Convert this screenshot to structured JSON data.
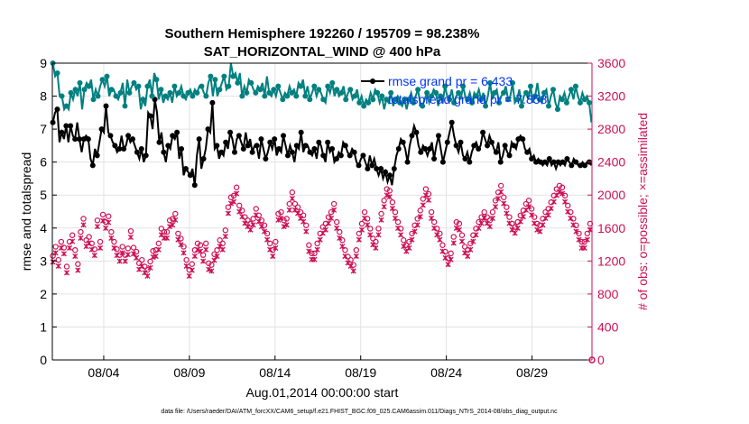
{
  "chart_data": {
    "type": "line",
    "title": [
      "Southern Hemisphere 192260 / 195709 = 98.238%",
      "SAT_HORIZONTAL_WIND @ 400 hPa"
    ],
    "xlabel": "Aug.01,2014 00:00:00 start",
    "ylabel": "rmse and totalspread",
    "ylabel_right": "# of obs: o=possible; ×=assimilated",
    "footer": "data file: /Users/raeder/DAI/ATM_forcXX/CAM6_setup/f.e21.FHIST_BGC.f09_025.CAM6assim.011/Diags_NTrS_2014-08/obs_diag_output.nc",
    "xlim": [
      0,
      31.5
    ],
    "ylim": [
      0,
      9
    ],
    "ylim_right": [
      0,
      3600
    ],
    "x_ticks": [
      3,
      8,
      13,
      18,
      23,
      28
    ],
    "x_tick_labels": [
      "08/04",
      "08/09",
      "08/14",
      "08/19",
      "08/24",
      "08/29"
    ],
    "y_ticks": [
      0,
      1,
      2,
      3,
      4,
      5,
      6,
      7,
      8,
      9
    ],
    "y_ticks_right": [
      0,
      400,
      800,
      1200,
      1600,
      2000,
      2400,
      2800,
      3200,
      3600
    ],
    "grid": true,
    "legend_position": "top-right",
    "colors": {
      "rmse": "#000000",
      "spread": "#008080",
      "obs": "#cc1155",
      "legend_text": "#0033ff"
    },
    "series": [
      {
        "name": "rmse grand pr = 6.433",
        "axis": "left",
        "color": "#000000",
        "values": [
          7.2,
          7.5,
          7.6,
          6.6,
          6.9,
          6.7,
          7.1,
          6.6,
          7.1,
          6.8,
          6.7,
          7.2,
          6.7,
          6.3,
          6.7,
          6.8,
          6.7,
          6.1,
          5.9,
          6.4,
          6.2,
          6.6,
          7.0,
          6.9,
          7.7,
          6.9,
          6.8,
          6.6,
          6.5,
          6.3,
          6.4,
          6.8,
          6.4,
          6.5,
          6.8,
          6.6,
          6.7,
          6.5,
          6.3,
          6.1,
          6.4,
          6.0,
          6.2,
          7.5,
          7.4,
          7.0,
          7.9,
          7.5,
          6.6,
          6.9,
          6.3,
          6.0,
          6.5,
          6.4,
          6.8,
          6.7,
          6.9,
          6.1,
          6.4,
          5.6,
          5.8,
          5.7,
          5.6,
          5.8,
          5.3,
          6.2,
          6.7,
          5.8,
          6.1,
          6.4,
          7.0,
          6.9,
          7.8,
          6.4,
          6.5,
          6.1,
          6.3,
          6.2,
          6.6,
          6.4,
          6.9,
          6.7,
          6.3,
          6.7,
          6.8,
          6.6,
          6.4,
          6.9,
          6.5,
          6.7,
          6.3,
          6.5,
          6.5,
          6.1,
          6.7,
          6.4,
          6.1,
          6.3,
          6.6,
          6.4,
          6.7,
          6.2,
          6.4,
          6.3,
          6.8,
          6.5,
          6.2,
          6.5,
          6.3,
          6.0,
          6.5,
          6.4,
          6.9,
          6.3,
          6.5,
          6.5,
          6.3,
          6.2,
          6.4,
          6.1,
          6.6,
          6.5,
          6.2,
          6.0,
          6.6,
          6.3,
          6.4,
          6.0,
          6.1,
          6.3,
          6.2,
          6.6,
          6.5,
          6.3,
          6.2,
          6.4,
          6.3,
          6.0,
          5.9,
          6.1,
          6.2,
          6.0,
          5.8,
          6.2,
          5.9,
          6.1,
          5.8,
          5.6,
          5.8,
          5.5,
          5.7,
          5.4,
          5.6,
          5.3,
          5.8,
          6.2,
          6.4,
          6.7,
          6.6,
          6.4,
          6.0,
          6.5,
          6.8,
          7.1,
          6.9,
          6.5,
          6.3,
          6.5,
          6.4,
          6.2,
          6.4,
          6.6,
          6.1,
          6.5,
          6.8,
          6.4,
          6.0,
          6.3,
          6.6,
          6.9,
          7.2,
          6.8,
          6.5,
          6.3,
          6.6,
          6.2,
          6.1,
          6.3,
          6.0,
          6.3,
          6.5,
          6.6,
          6.4,
          6.5,
          6.9,
          6.7,
          6.5,
          6.8,
          6.6,
          6.4,
          6.3,
          6.6,
          6.0,
          6.2,
          6.5,
          6.3,
          6.2,
          6.6,
          6.5,
          6.4,
          6.7,
          6.8,
          6.7,
          6.4,
          6.3,
          6.4,
          6.1,
          6.2,
          6.0,
          6.1,
          6.0,
          5.9,
          6.0,
          5.9,
          6.1,
          5.9,
          6.0,
          5.8,
          6.0,
          5.9,
          6.0,
          5.9,
          6.1,
          6.0,
          5.9,
          6.1,
          6.0,
          5.9,
          5.9,
          6.0,
          5.9,
          6.0,
          6.0,
          5.9
        ]
      },
      {
        "name": "totalspread grand pr = 7.858",
        "axis": "left",
        "color": "#008080",
        "values": [
          9.0,
          8.6,
          8.7,
          8.0,
          8.0,
          7.6,
          7.7,
          7.6,
          8.1,
          7.9,
          8.2,
          8.0,
          8.4,
          7.6,
          8.2,
          8.4,
          8.3,
          8.5,
          7.9,
          8.2,
          8.0,
          8.3,
          8.5,
          8.3,
          8.6,
          8.0,
          8.2,
          8.2,
          8.0,
          7.9,
          8.1,
          8.4,
          7.7,
          8.5,
          8.1,
          8.3,
          8.4,
          8.2,
          8.3,
          7.6,
          7.9,
          7.7,
          8.3,
          8.5,
          8.0,
          8.7,
          8.5,
          7.9,
          8.2,
          7.8,
          8.0,
          7.9,
          8.1,
          7.8,
          8.3,
          8.0,
          8.1,
          8.3,
          8.0,
          7.9,
          8.1,
          8.2,
          8.0,
          8.2,
          8.1,
          8.3,
          8.3,
          8.1,
          8.0,
          8.4,
          8.6,
          8.0,
          8.5,
          8.0,
          8.2,
          8.4,
          8.6,
          8.2,
          8.3,
          9.0,
          8.6,
          8.7,
          8.4,
          8.7,
          8.0,
          8.3,
          8.1,
          8.5,
          8.4,
          8.2,
          8.1,
          8.3,
          8.2,
          8.4,
          8.0,
          8.6,
          8.1,
          8.0,
          8.2,
          8.0,
          8.3,
          8.1,
          7.9,
          8.1,
          8.0,
          8.3,
          8.1,
          8.2,
          8.0,
          8.4,
          8.3,
          8.5,
          8.0,
          8.3,
          7.9,
          8.1,
          8.3,
          8.0,
          8.2,
          8.1,
          7.9,
          7.8,
          8.3,
          8.1,
          8.4,
          8.0,
          8.2,
          8.0,
          8.1,
          8.3,
          7.9,
          8.1,
          8.2,
          7.9,
          8.0,
          8.2,
          7.8,
          8.0,
          7.7,
          7.9,
          7.8,
          8.1,
          7.9,
          8.2,
          8.1,
          7.8,
          8.0,
          7.6,
          7.9,
          7.8,
          8.1,
          7.7,
          7.9,
          8.0,
          7.8,
          7.7,
          7.9,
          7.6,
          7.9,
          8.1,
          7.8,
          8.0,
          8.2,
          7.8,
          7.7,
          7.9,
          8.1,
          7.8,
          8.0,
          8.2,
          8.1,
          7.7,
          8.0,
          7.8,
          8.3,
          8.0,
          7.9,
          8.2,
          7.8,
          8.0,
          8.1,
          7.9,
          8.3,
          8.0,
          7.9,
          8.1,
          7.8,
          8.1,
          8.0,
          8.2,
          7.9,
          8.1,
          7.7,
          8.0,
          8.4,
          7.9,
          8.1,
          8.2,
          7.8,
          8.0,
          8.1,
          8.3,
          7.9,
          8.0,
          8.4,
          7.8,
          7.9,
          8.2,
          7.7,
          8.0,
          8.1,
          7.9,
          8.3,
          7.8,
          8.0,
          8.4,
          7.9,
          7.8,
          8.1,
          8.2,
          7.7,
          8.0,
          8.2,
          7.8,
          7.6,
          8.0,
          7.9,
          8.1,
          7.8,
          8.0,
          8.2,
          7.9,
          8.3,
          8.0,
          7.8,
          8.1,
          7.9,
          8.0,
          7.8,
          7.2
        ]
      }
    ],
    "obs_possible": [
      1230,
      1210,
      1340,
      1280,
      1180,
      1220,
      1400,
      1420,
      1330,
      1160,
      1100,
      1130,
      1400,
      1210,
      1480,
      1560,
      1300,
      1380,
      1130,
      1390,
      1520,
      1580,
      1680,
      1720,
      1420,
      1560,
      1460,
      1440,
      1380,
      1470,
      1310,
      1560,
      1660,
      1360,
      1400,
      1410,
      1730,
      1340,
      1640,
      1580,
      1710,
      1540,
      1520,
      1470,
      1400,
      1370,
      1310,
      1260,
      1240,
      1260,
      1340,
      1400,
      1240,
      1310,
      1320,
      1440,
      1530,
      1480,
      1330,
      1270,
      1280,
      1050,
      1140,
      1200,
      1180,
      1260,
      1100,
      1080,
      1060,
      1120,
      1160,
      1240,
      1290,
      1280,
      1300,
      1360,
      1380,
      1340,
      1560,
      1500,
      1520,
      1440,
      1520,
      1620,
      1660,
      1720,
      1680,
      1780,
      1740,
      1600,
      1500,
      1520,
      1440,
      1400,
      1340,
      1260,
      1180,
      1120,
      1060,
      1100,
      1130,
      1280,
      1300,
      1420,
      1380,
      1440,
      1360,
      1300,
      1240,
      1200,
      1380,
      1220,
      1140,
      1040,
      1120,
      1170,
      1250,
      1200,
      1300,
      1340,
      1420,
      1380,
      1380,
      1440,
      1540,
      1700,
      1820,
      1880,
      1940,
      2000,
      1960,
      2000,
      2060,
      2000,
      1840,
      1800,
      1780,
      1760,
      1700,
      1720,
      1660,
      1580,
      1620,
      1660,
      1680,
      1700,
      1800,
      1740,
      1720,
      1700,
      1660,
      1640,
      1600,
      1580,
      1500,
      1440,
      1380,
      1340,
      1300,
      1280,
      1400,
      1560,
      1740,
      1800,
      1760,
      1700,
      1660,
      1640,
      1680,
      1800,
      1860,
      1940,
      2000,
      1920,
      1860,
      1800,
      1820,
      1780,
      1760,
      1740,
      1720,
      1700,
      1600,
      1420,
      1360,
      1300,
      1260,
      1200,
      1260,
      1300,
      1380,
      1440,
      1500,
      1540,
      1580,
      1600,
      1620,
      1660,
      1700,
      1700,
      1760,
      1820,
      1860,
      1740,
      1640,
      1620,
      1520,
      1460,
      1420,
      1380,
      1300,
      1240,
      1220,
      1200,
      1180,
      1140,
      1120,
      1220,
      1300,
      1420,
      1500,
      1520,
      1620,
      1700,
      1760,
      1800,
      1680,
      1640,
      1560,
      1500,
      1440,
      1380,
      1400,
      1480,
      1560,
      1660,
      1740,
      1840,
      1900,
      1980,
      2040,
      2060,
      2020,
      1960,
      1880,
      1820,
      1760,
      1700,
      1640,
      1600,
      1560,
      1480,
      1420,
      1380,
      1360,
      1340,
      1400,
      1440,
      1500,
      1560,
      1600,
      1640,
      1680,
      1700,
      1780,
      1840,
      1920,
      1960,
      2040,
      2100,
      1980,
      1880,
      1760,
      1700,
      1640,
      1600,
      1560,
      1540,
      1500,
      1420,
      1360,
      1320,
      1280,
      1240,
      1200,
      1180,
      1260,
      1360,
      1460,
      1560,
      1640,
      1700,
      1620,
      1560,
      1480,
      1400,
      1340,
      1280,
      1300,
      1340,
      1380,
      1420,
      1480,
      1520,
      1560,
      1600,
      1640,
      1660,
      1700,
      1740,
      1760,
      1740,
      1700,
      1680,
      1660,
      1700,
      1760,
      1840,
      1900,
      1960,
      2000,
      2040,
      2080,
      2000,
      1940,
      1880,
      1820,
      1760,
      1700,
      1660,
      1620,
      1600,
      1580,
      1600,
      1640,
      1680,
      1720,
      1760,
      1780,
      1820,
      1860,
      1880,
      1900,
      1860,
      1800,
      1740,
      1700,
      1660,
      1620,
      1580,
      1600,
      1640,
      1680,
      1720,
      1760,
      1780,
      1800,
      1840,
      1880,
      1920,
      1960,
      2000,
      2040,
      2060,
      2080,
      2100,
      2060,
      2000,
      1960,
      1900,
      1840,
      1800,
      1760,
      1720,
      1680,
      1640,
      1600,
      1560,
      1500,
      1440,
      1400,
      1380,
      1400,
      1440,
      1500,
      1560,
      1620,
      1680
    ],
    "obs_assimilated": [
      1210,
      1190,
      1320,
      1260,
      1160,
      1200,
      1380,
      1400,
      1310,
      1140,
      1080,
      1110,
      1380,
      1190,
      1460,
      1540,
      1280,
      1360,
      1110,
      1370,
      1500,
      1560,
      1660,
      1700,
      1400,
      1540,
      1440,
      1420,
      1360,
      1450,
      1290,
      1540,
      1640,
      1340,
      1380,
      1390,
      1710,
      1320,
      1620,
      1560,
      1690,
      1520,
      1500,
      1450,
      1380,
      1350,
      1290,
      1240,
      1220,
      1240,
      1320,
      1380,
      1220,
      1290,
      1300,
      1420,
      1510,
      1460,
      1310,
      1250,
      1260,
      1030,
      1120,
      1180,
      1160,
      1240,
      1080,
      1060,
      1040,
      1100,
      1140,
      1220,
      1270,
      1260,
      1280,
      1340,
      1360,
      1320,
      1540,
      1480,
      1500,
      1420,
      1500,
      1600,
      1640,
      1700,
      1660,
      1760,
      1720,
      1580,
      1480,
      1500,
      1420,
      1380,
      1320,
      1240,
      1160,
      1100,
      1040,
      1080,
      1110,
      1260,
      1280,
      1400,
      1360,
      1420,
      1340,
      1280,
      1220,
      1180,
      1360,
      1200,
      1120,
      1020,
      1100,
      1150,
      1230,
      1180,
      1280,
      1320,
      1400,
      1360,
      1360,
      1420,
      1520,
      1680,
      1800,
      1860,
      1920,
      1980,
      1940,
      1980,
      2040,
      1980,
      1820,
      1780,
      1760,
      1740,
      1680,
      1700,
      1640,
      1560,
      1600,
      1640,
      1660,
      1680,
      1780,
      1720,
      1700,
      1680,
      1640,
      1620,
      1580,
      1560,
      1480,
      1420,
      1360,
      1320,
      1280,
      1260,
      1380,
      1540,
      1720,
      1780,
      1740,
      1680,
      1640,
      1620,
      1660,
      1780,
      1840,
      1920,
      1980,
      1900,
      1840,
      1780,
      1800,
      1760,
      1740,
      1720,
      1700,
      1680,
      1580,
      1400,
      1340,
      1280,
      1240,
      1180,
      1240,
      1280,
      1360,
      1420,
      1480,
      1520,
      1560,
      1580,
      1600,
      1640,
      1680,
      1680,
      1740,
      1800,
      1840,
      1720,
      1620,
      1600,
      1500,
      1440,
      1400,
      1360,
      1280,
      1220,
      1200,
      1180,
      1160,
      1120,
      1100,
      1200,
      1280,
      1400,
      1480,
      1500,
      1600,
      1680,
      1740,
      1780,
      1660,
      1620,
      1540,
      1480,
      1420,
      1360,
      1380,
      1460,
      1540,
      1640,
      1720,
      1820,
      1880,
      1960,
      2020,
      2040,
      2000,
      1940,
      1860,
      1800,
      1740,
      1680,
      1620,
      1580,
      1540,
      1460,
      1400,
      1360,
      1340,
      1320,
      1380,
      1420,
      1480,
      1540,
      1580,
      1620,
      1660,
      1680,
      1760,
      1820,
      1900,
      1940,
      2020,
      2080,
      1960,
      1860,
      1740,
      1680,
      1620,
      1580,
      1540,
      1520,
      1480,
      1400,
      1340,
      1300,
      1260,
      1220,
      1180,
      1160,
      1240,
      1340,
      1440,
      1540,
      1620,
      1680,
      1600,
      1540,
      1460,
      1380,
      1320,
      1260,
      1280,
      1320,
      1360,
      1400,
      1460,
      1500,
      1540,
      1580,
      1620,
      1640,
      1680,
      1720,
      1740,
      1720,
      1680,
      1660,
      1640,
      1680,
      1740,
      1820,
      1880,
      1940,
      1980,
      2020,
      2060,
      1980,
      1920,
      1860,
      1800,
      1740,
      1680,
      1640,
      1600,
      1580,
      1560,
      1580,
      1620,
      1660,
      1700,
      1740,
      1760,
      1800,
      1840,
      1860,
      1880,
      1840,
      1780,
      1720,
      1680,
      1640,
      1600,
      1560,
      1580,
      1620,
      1660,
      1700,
      1740,
      1760,
      1780,
      1820,
      1860,
      1900,
      1940,
      1980,
      2020,
      2040,
      2060,
      2080,
      2040,
      1980,
      1940,
      1880,
      1820,
      1780,
      1740,
      1700,
      1660,
      1620,
      1580,
      1540,
      1480,
      1420,
      1380,
      1360,
      1380,
      1420,
      1480,
      1540,
      1600,
      1660
    ]
  }
}
